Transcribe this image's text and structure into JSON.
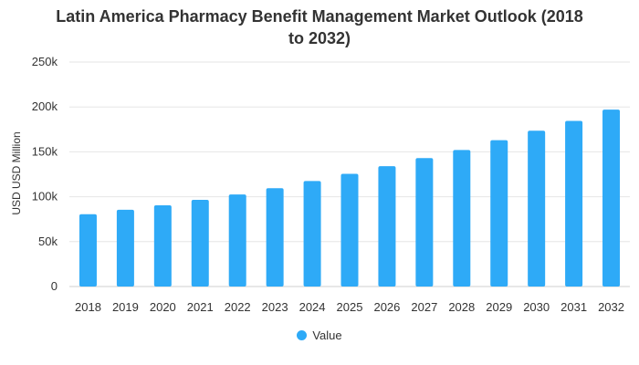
{
  "chart_data": {
    "type": "bar",
    "title_lines": [
      "Latin America Pharmacy Benefit Management Market Outlook (2018",
      "to 2032)"
    ],
    "xlabel": "",
    "ylabel": "USD USD Million",
    "ylim": [
      0,
      250000
    ],
    "yticks": [
      0,
      50000,
      100000,
      150000,
      200000,
      250000
    ],
    "ytick_labels": [
      "0",
      "50k",
      "100k",
      "150k",
      "200k",
      "250k"
    ],
    "grid": true,
    "legend_position": "bottom",
    "categories": [
      "2018",
      "2019",
      "2020",
      "2021",
      "2022",
      "2023",
      "2024",
      "2025",
      "2026",
      "2027",
      "2028",
      "2029",
      "2030",
      "2031",
      "2032"
    ],
    "series": [
      {
        "name": "Value",
        "color": "#2eaaf7",
        "values": [
          80500,
          85500,
          90500,
          96500,
          102500,
          109500,
          117500,
          125500,
          134000,
          143000,
          152000,
          163000,
          173500,
          184500,
          197000
        ]
      }
    ]
  }
}
